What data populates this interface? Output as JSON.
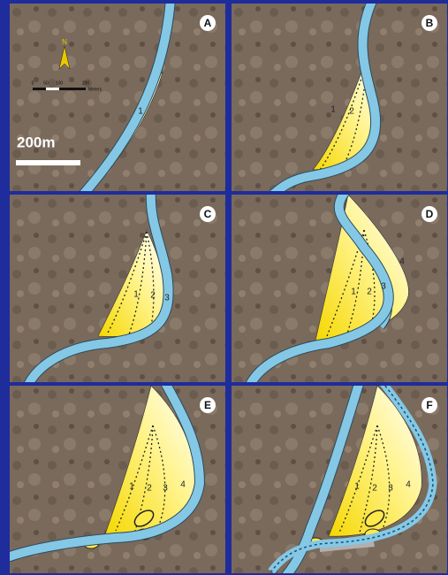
{
  "scale_bar": "200m",
  "north": "N",
  "map_scale": {
    "ticks": [
      "0",
      "50",
      "100",
      "200"
    ],
    "unit": "Meters"
  },
  "panels": [
    {
      "label": "A",
      "stages": [
        "1"
      ]
    },
    {
      "label": "B",
      "stages": [
        "1",
        "2"
      ]
    },
    {
      "label": "C",
      "stages": [
        "1",
        "2",
        "3"
      ]
    },
    {
      "label": "D",
      "stages": [
        "1",
        "2",
        "3",
        "4"
      ]
    },
    {
      "label": "E",
      "stages": [
        "1",
        "2",
        "3",
        "4"
      ]
    },
    {
      "label": "F",
      "stages": [
        "1",
        "2",
        "3",
        "4"
      ]
    }
  ]
}
